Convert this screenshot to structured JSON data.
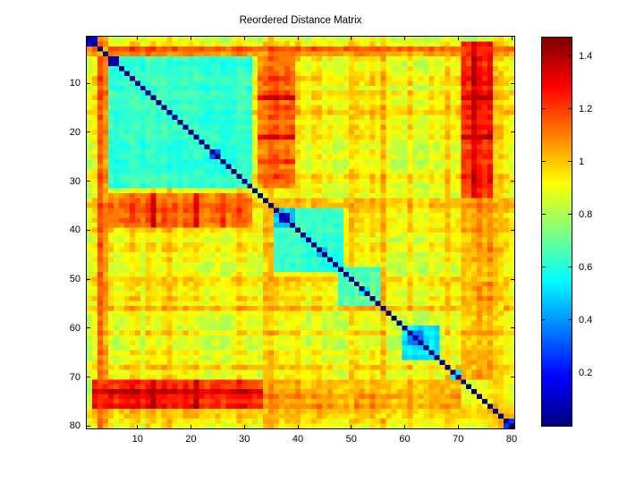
{
  "chart_data": {
    "type": "heatmap",
    "title": "Reordered Distance Matrix",
    "n": 80,
    "x_axis": {
      "tick_values": [
        10,
        20,
        30,
        40,
        50,
        60,
        70,
        80
      ],
      "tick_labels": [
        "10",
        "20",
        "30",
        "40",
        "50",
        "60",
        "70",
        "80"
      ],
      "range": [
        0.5,
        80.5
      ]
    },
    "y_axis": {
      "tick_values": [
        10,
        20,
        30,
        40,
        50,
        60,
        70,
        80
      ],
      "tick_labels": [
        "10",
        "20",
        "30",
        "40",
        "50",
        "60",
        "70",
        "80"
      ],
      "range": [
        0.5,
        80.5
      ],
      "direction": "top-to-bottom"
    },
    "colorbar": {
      "colormap": "jet",
      "min": 0,
      "max": 1.47,
      "tick_values": [
        0.2,
        0.4,
        0.6,
        0.8,
        1.0,
        1.2,
        1.4
      ],
      "tick_labels": [
        "0.2",
        "0.4",
        "0.6",
        "0.8",
        "1",
        "1.2",
        "1.4"
      ],
      "position": "right"
    },
    "grid": false,
    "legend": false,
    "description": "Symmetric 80x80 pairwise distance matrix reordered so similar items are adjacent. Zero-distance dark-blue diagonal; cyan/blue blocks along the diagonal mark clusters (rows 1-2, 5-31 with tight pairs 5-6 and 24-25, 36-48 with tight pair 37-38, 48-55, 60-66, 69-70, 79-80); orange outlier rows/columns at 3-4, 16, 34-35, 50, 56, 68, 77-78; a far (red) group at rows 71-76 versus columns 2-33, darkest at row 73; background distances mostly 0.8-1.1 (yellow/green) with striped texture.",
    "diagonal_value": 0,
    "pattern": {
      "base_level": 0.92,
      "stripe_amp": 0.13,
      "noise_amp": 0.05,
      "band_stripe_amp": 0.1,
      "band_noise_amp": 0.05,
      "block_stripe_amp": 0.06,
      "block_noise_amp": 0.04,
      "clamp": [
        0.02,
        1.45
      ],
      "bands": [
        {
          "rows": [
            16,
            16
          ],
          "cols": [
            1,
            80
          ],
          "level": 1.02
        },
        {
          "rows": [
            34,
            34
          ],
          "cols": [
            1,
            80
          ],
          "level": 1.0
        },
        {
          "rows": [
            35,
            35
          ],
          "cols": [
            1,
            80
          ],
          "level": 0.98
        },
        {
          "rows": [
            50,
            50
          ],
          "cols": [
            1,
            80
          ],
          "level": 1.04
        },
        {
          "rows": [
            56,
            56
          ],
          "cols": [
            1,
            80
          ],
          "level": 1.06
        },
        {
          "rows": [
            68,
            68
          ],
          "cols": [
            1,
            80
          ],
          "level": 1.02
        },
        {
          "rows": [
            77,
            78
          ],
          "cols": [
            1,
            80
          ],
          "level": 1.04
        },
        {
          "rows": [
            3,
            3
          ],
          "cols": [
            1,
            80
          ],
          "level": 1.18
        },
        {
          "rows": [
            4,
            4
          ],
          "cols": [
            1,
            80
          ],
          "level": 1.08
        },
        {
          "rows": [
            33,
            39
          ],
          "cols": [
            5,
            31
          ],
          "level": 1.12
        },
        {
          "rows": [
            33,
            39
          ],
          "cols": [
            13,
            13
          ],
          "level": 1.28
        },
        {
          "rows": [
            33,
            39
          ],
          "cols": [
            21,
            21
          ],
          "level": 1.28
        },
        {
          "rows": [
            33,
            39
          ],
          "cols": [
            26,
            26
          ],
          "level": 1.26
        },
        {
          "rows": [
            71,
            76
          ],
          "cols": [
            2,
            33
          ],
          "level": 1.26
        },
        {
          "rows": [
            73,
            73
          ],
          "cols": [
            2,
            33
          ],
          "level": 1.4
        },
        {
          "rows": [
            71,
            76
          ],
          "cols": [
            13,
            13
          ],
          "level": 1.38
        },
        {
          "rows": [
            71,
            76
          ],
          "cols": [
            21,
            21
          ],
          "level": 1.38
        },
        {
          "rows": [
            71,
            76
          ],
          "cols": [
            34,
            70
          ],
          "level": 1.06
        },
        {
          "rows": [
            71,
            76
          ],
          "cols": [
            71,
            76
          ],
          "level": 0.95
        }
      ],
      "blocks": [
        {
          "range": [
            1,
            2
          ],
          "level": 0.15
        },
        {
          "range": [
            5,
            31
          ],
          "level": 0.62
        },
        {
          "range": [
            5,
            6
          ],
          "level": 0.1
        },
        {
          "range": [
            24,
            25
          ],
          "level": 0.33
        },
        {
          "range": [
            36,
            48
          ],
          "level": 0.62
        },
        {
          "range": [
            36,
            39
          ],
          "level": 0.45
        },
        {
          "range": [
            37,
            38
          ],
          "level": 0.1
        },
        {
          "range": [
            44,
            45
          ],
          "level": 0.45
        },
        {
          "range": [
            48,
            55
          ],
          "level": 0.68
        },
        {
          "range": [
            52,
            53
          ],
          "level": 0.55
        },
        {
          "range": [
            60,
            66
          ],
          "level": 0.55
        },
        {
          "range": [
            61,
            63
          ],
          "level": 0.38
        },
        {
          "range": [
            69,
            70
          ],
          "level": 0.5
        },
        {
          "range": [
            79,
            80
          ],
          "level": 0.28
        }
      ]
    },
    "colors": {
      "figure_background": "#ffffff",
      "axes_line": "#000000",
      "tick_label": "#000000",
      "jet_low": "#00008f",
      "jet_high": "#7f0000"
    }
  }
}
